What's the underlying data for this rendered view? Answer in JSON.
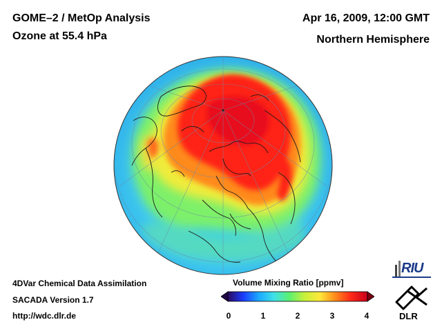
{
  "header": {
    "title_line1": "GOME–2 / MetOp Analysis",
    "title_line2": "Ozone at 55.4 hPa",
    "date": "Apr 16, 2009, 12:00 GMT",
    "hemisphere": "Northern Hemisphere"
  },
  "footer": {
    "line1": "4DVar Chemical Data Assimilation",
    "line2": "SACADA Version 1.7",
    "line3": "http://wdc.dlr.de"
  },
  "colorbar": {
    "title": "Volume Mixing Ratio [ppmv]",
    "min": 0,
    "max": 4,
    "ticks": [
      "0",
      "1",
      "2",
      "3",
      "4"
    ],
    "colors": [
      "#2a0a5e",
      "#1a3cff",
      "#1aa8ff",
      "#3fe0e8",
      "#5cf070",
      "#c8f03a",
      "#ffe83a",
      "#ff8a1a",
      "#ff2a1a",
      "#c8001a"
    ]
  },
  "map": {
    "projection": "orthographic",
    "hemisphere_view": "north-polar",
    "ocean_low_color": "#43c6f0",
    "high_color": "#e8101a"
  },
  "logos": {
    "riu": "RIU",
    "dlr": "DLR"
  }
}
